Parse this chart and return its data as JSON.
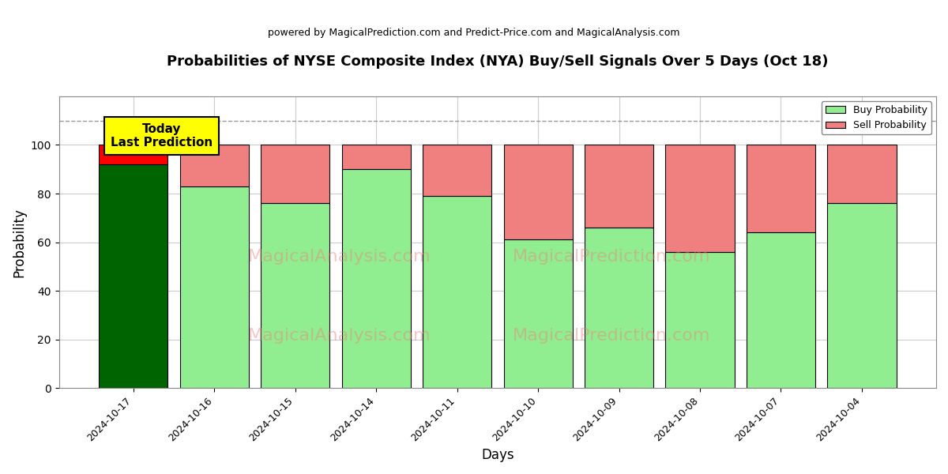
{
  "title": "Probabilities of NYSE Composite Index (NYA) Buy/Sell Signals Over 5 Days (Oct 18)",
  "subtitle": "powered by MagicalPrediction.com and Predict-Price.com and MagicalAnalysis.com",
  "xlabel": "Days",
  "ylabel": "Probability",
  "dates": [
    "2024-10-17",
    "2024-10-16",
    "2024-10-15",
    "2024-10-14",
    "2024-10-11",
    "2024-10-10",
    "2024-10-09",
    "2024-10-08",
    "2024-10-07",
    "2024-10-04"
  ],
  "buy_values": [
    92,
    83,
    76,
    90,
    79,
    61,
    66,
    56,
    64,
    76
  ],
  "sell_values": [
    8,
    17,
    24,
    10,
    21,
    39,
    34,
    44,
    36,
    24
  ],
  "today_buy_color": "#006400",
  "today_sell_color": "#ff0000",
  "buy_color": "#90ee90",
  "sell_color": "#f08080",
  "bar_edge_color": "#000000",
  "today_annotation_bg": "#ffff00",
  "today_annotation_text": "Today\nLast Prediction",
  "legend_buy": "Buy Probability",
  "legend_sell": "Sell Probability",
  "ylim": [
    0,
    120
  ],
  "yticks": [
    0,
    20,
    40,
    60,
    80,
    100
  ],
  "dashed_line_y": 110,
  "background_color": "#ffffff",
  "grid_color": "#cccccc"
}
